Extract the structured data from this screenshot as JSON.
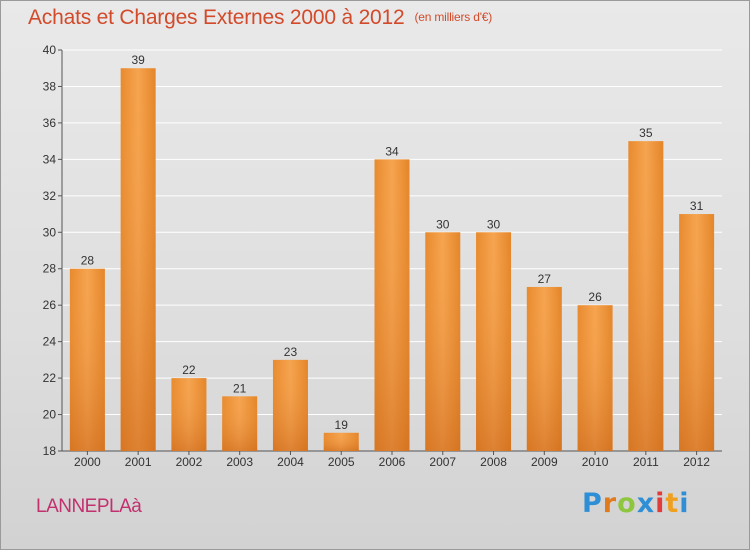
{
  "title": "Achats et Charges Externes 2000 à 2012",
  "unit_note": "(en milliers d'€)",
  "commune": "LANNEPLAà",
  "logo_text": "Proxiti",
  "colors": {
    "bar_light": "#f7a955",
    "bar_dark": "#d2721c",
    "grid": "#ffffff",
    "title": "#d24a2a",
    "commune": "#c2306e"
  },
  "chart_data": {
    "type": "bar",
    "title": "Achats et Charges Externes 2000 à 2012",
    "subtitle": "(en milliers d'€)",
    "categories": [
      "2000",
      "2001",
      "2002",
      "2003",
      "2004",
      "2005",
      "2006",
      "2007",
      "2008",
      "2009",
      "2010",
      "2011",
      "2012"
    ],
    "values": [
      28,
      39,
      22,
      21,
      23,
      19,
      34,
      30,
      30,
      27,
      26,
      35,
      31
    ],
    "ylim": [
      18,
      40
    ],
    "yticks": [
      18,
      20,
      22,
      24,
      26,
      28,
      30,
      32,
      34,
      36,
      38,
      40
    ],
    "grid": true,
    "xlabel": "",
    "ylabel": ""
  }
}
